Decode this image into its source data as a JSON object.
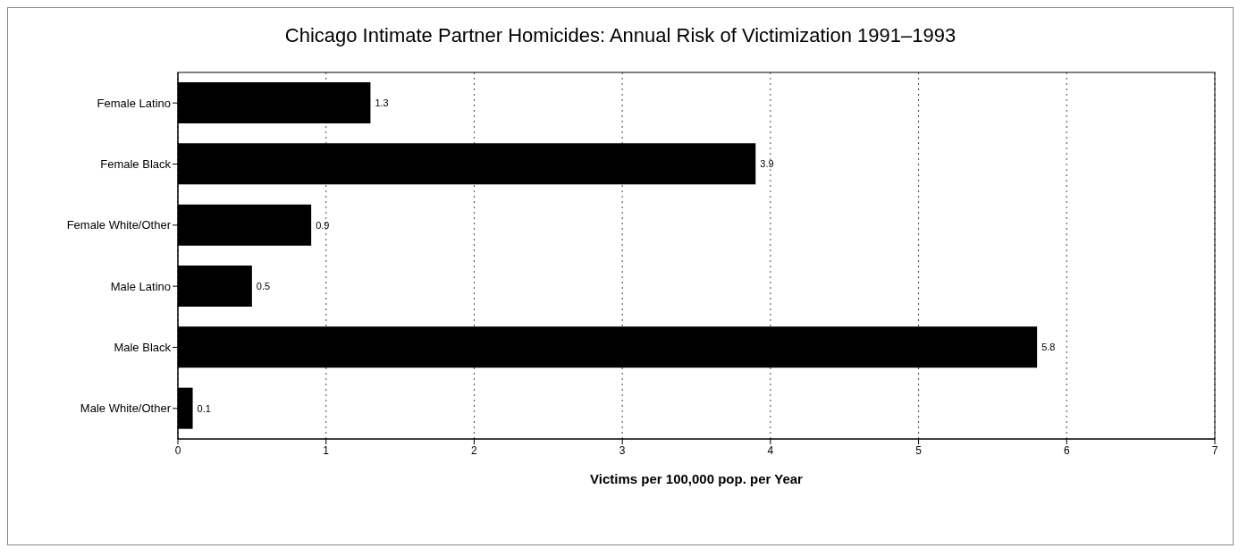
{
  "chart_data": {
    "type": "bar",
    "orientation": "horizontal",
    "title": "Chicago Intimate Partner Homicides: Annual Risk of Victimization 1991–1993",
    "xlabel": "Victims per 100,000 pop. per Year",
    "categories": [
      "Female Latino",
      "Female Black",
      "Female White/Other",
      "Male Latino",
      "Male Black",
      "Male White/Other"
    ],
    "values": [
      1.3,
      3.9,
      0.9,
      0.5,
      5.8,
      0.1
    ],
    "color": "#000000",
    "xlim": [
      0,
      7
    ],
    "xticks": [
      0,
      1,
      2,
      3,
      4,
      5,
      6,
      7
    ],
    "grid": "x",
    "data_labels": true
  }
}
